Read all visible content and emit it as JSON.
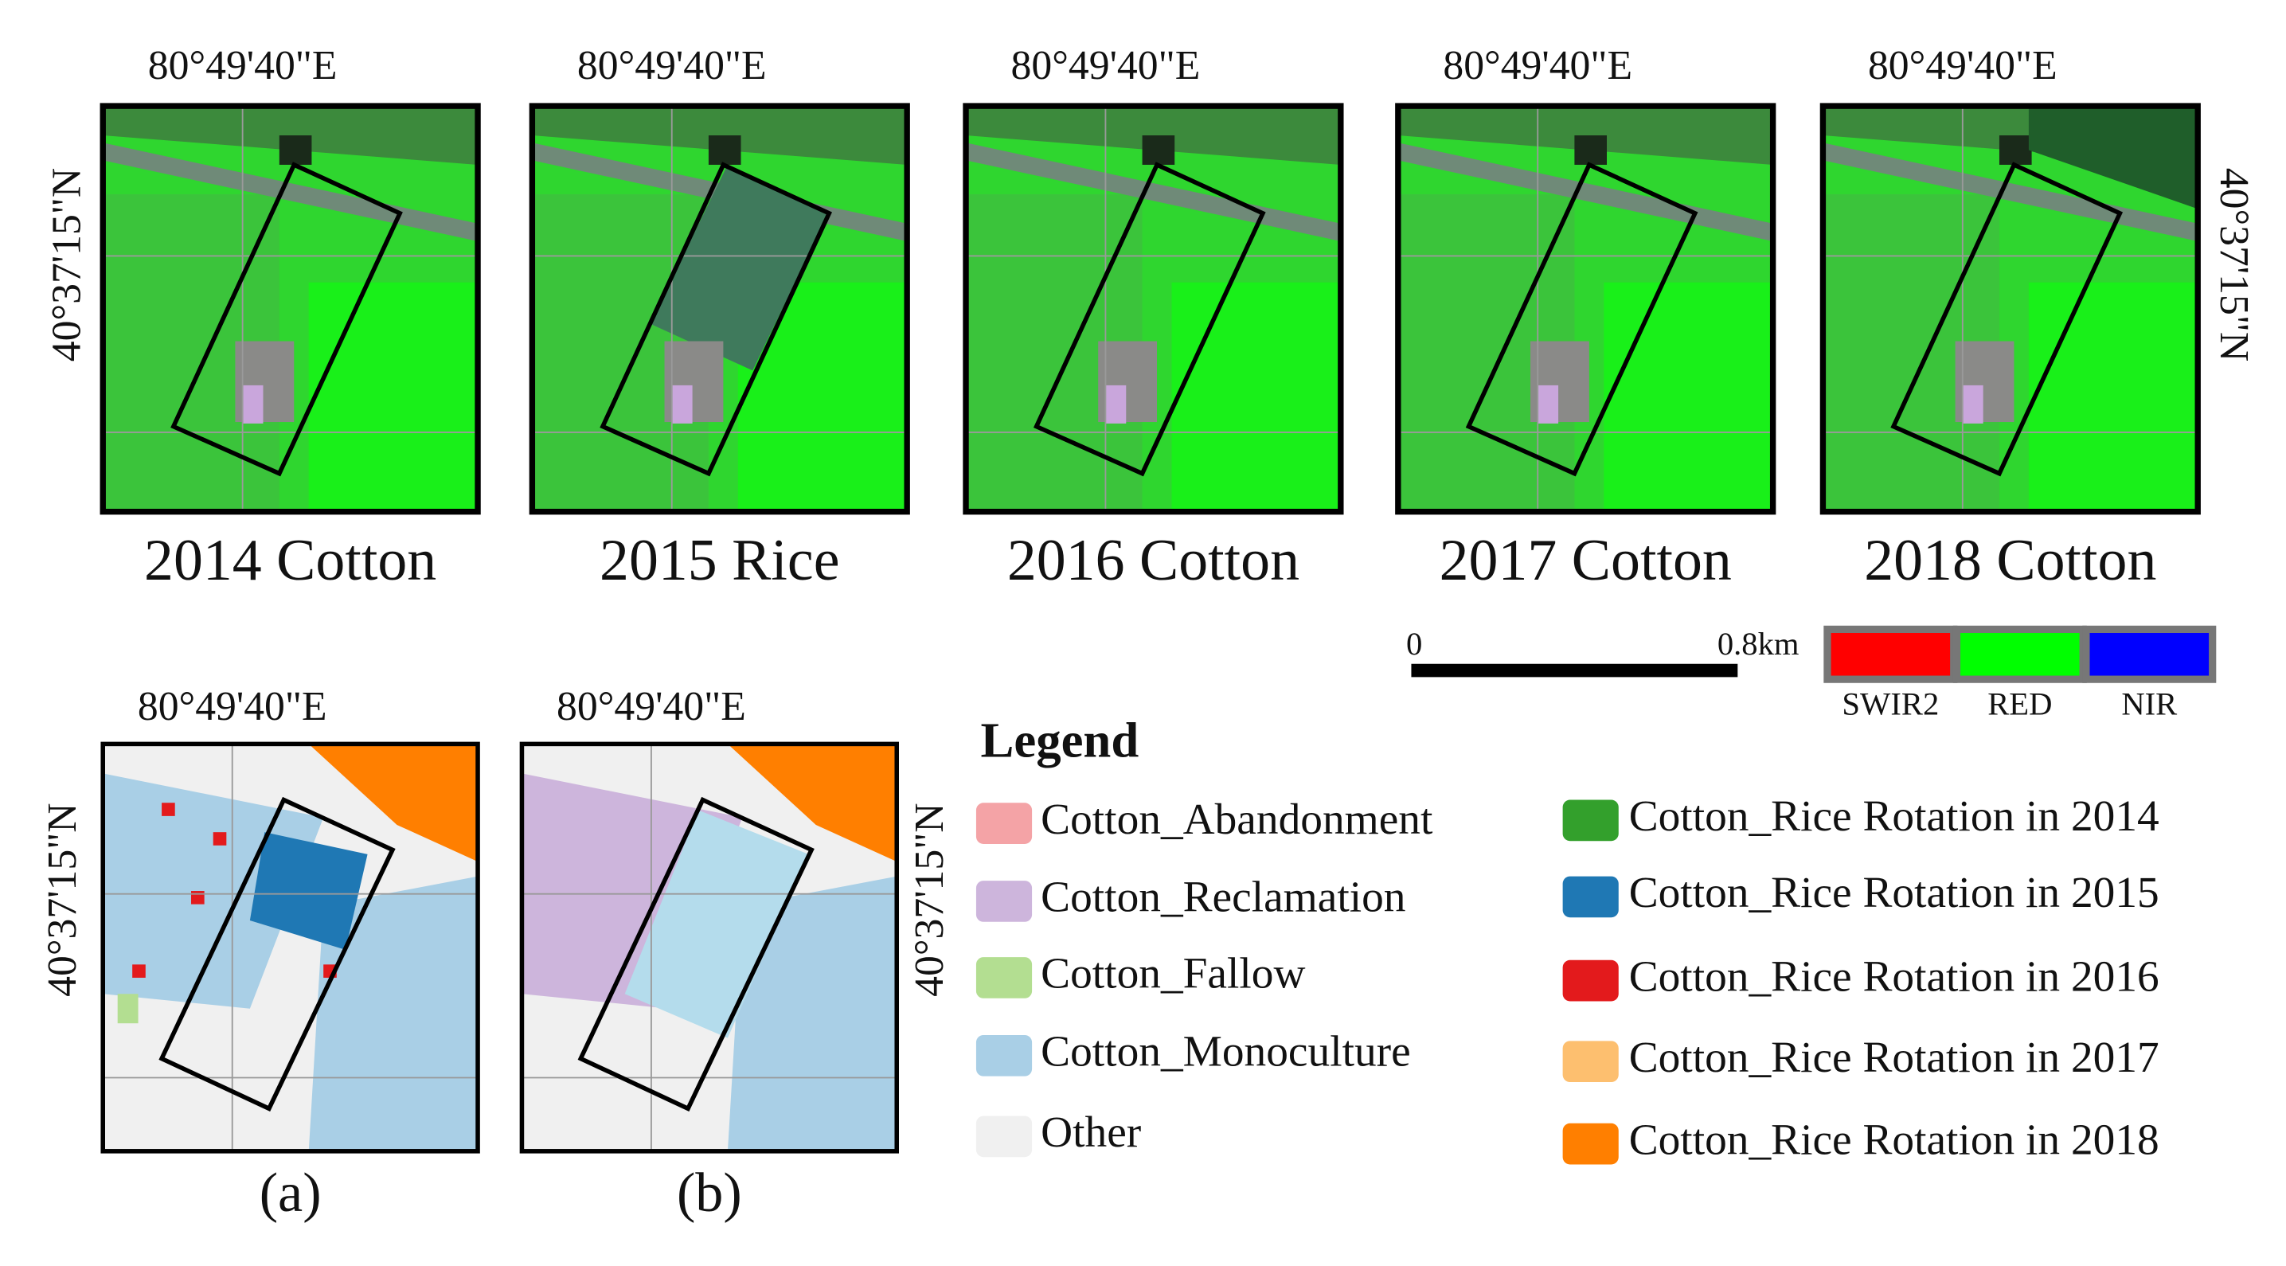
{
  "top_panels": [
    {
      "lon": "80°49'40\"E",
      "lat": "40°37'15\"N",
      "caption": "2014 Cotton"
    },
    {
      "lon": "80°49'40\"E",
      "caption": "2015 Rice"
    },
    {
      "lon": "80°49'40\"E",
      "caption": "2016 Cotton"
    },
    {
      "lon": "80°49'40\"E",
      "caption": "2017 Cotton"
    },
    {
      "lon": "80°49'40\"E",
      "lat": "40°37'15\"N",
      "caption": "2018 Cotton"
    }
  ],
  "scale_bar": {
    "start": "0",
    "end": "0.8km"
  },
  "bands": [
    {
      "label": "SWIR2",
      "color": "#ff0000"
    },
    {
      "label": "RED",
      "color": "#00ff00"
    },
    {
      "label": "NIR",
      "color": "#0000ff"
    }
  ],
  "bottom_panels": [
    {
      "lon": "80°49'40\"E",
      "lat": "40°37'15\"N",
      "caption": "(a)"
    },
    {
      "lon": "80°49'40\"E",
      "lat": "40°37'15\"N",
      "caption": "(b)"
    }
  ],
  "legend": {
    "title": "Legend",
    "items": [
      {
        "label": "Cotton_Abandonment",
        "color": "#f4a3a6"
      },
      {
        "label": "Cotton_Reclamation",
        "color": "#cdb5dc"
      },
      {
        "label": "Cotton_Fallow",
        "color": "#b3de91"
      },
      {
        "label": "Cotton_Monoculture",
        "color": "#a9cfe6"
      },
      {
        "label": "Other",
        "color": "#f0f0f0"
      },
      {
        "label": "Cotton_Rice Rotation in 2014",
        "color": "#33a02c"
      },
      {
        "label": "Cotton_Rice Rotation in 2015",
        "color": "#1f78b4"
      },
      {
        "label": "Cotton_Rice Rotation in 2016",
        "color": "#e31a1c"
      },
      {
        "label": "Cotton_Rice Rotation in 2017",
        "color": "#fdbf6f"
      },
      {
        "label": "Cotton_Rice Rotation in 2018",
        "color": "#ff7f00"
      }
    ]
  }
}
